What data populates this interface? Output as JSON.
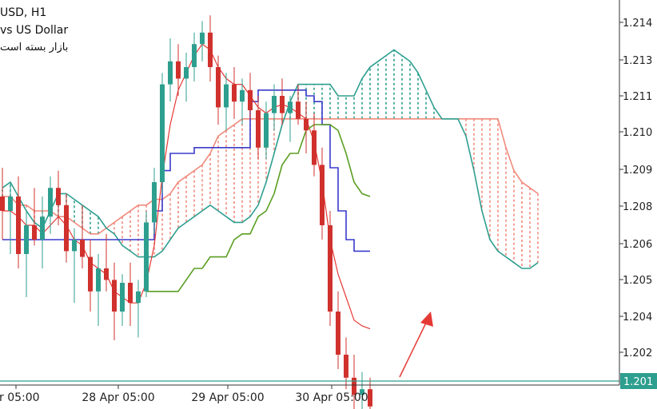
{
  "header": {
    "symbol": "USD, H1",
    "description": "vs US Dollar",
    "status": "بازار بسته است"
  },
  "chart_data": {
    "type": "candlestick",
    "timeframe": "H1",
    "price_ticks": [
      "1.214",
      "1.213",
      "1.211",
      "1.210",
      "1.209",
      "1.208",
      "1.206",
      "1.205",
      "1.204",
      "1.202"
    ],
    "time_ticks": [
      "or 05:00",
      "28 Apr 05:00",
      "29 Apr 05:00",
      "30 Apr 05:00"
    ],
    "current_price_label": "1.201",
    "colors": {
      "bull": "#2e9f8f",
      "bear": "#d0312d",
      "tenkan": "#e53935",
      "kijun": "#3a3acb",
      "chikou": "#5a9e22",
      "span_a": "#f08a7c",
      "span_b": "#2e9f8f",
      "current_price": "#2e9f8f",
      "arrow": "#e53935"
    },
    "candles": [
      [
        1.2085,
        1.2095,
        1.207,
        1.208
      ],
      [
        1.208,
        1.209,
        1.2065,
        1.2085
      ],
      [
        1.2085,
        1.2092,
        1.206,
        1.2065
      ],
      [
        1.2065,
        1.208,
        1.205,
        1.2075
      ],
      [
        1.2075,
        1.2088,
        1.2068,
        1.207
      ],
      [
        1.207,
        1.2085,
        1.206,
        1.2078
      ],
      [
        1.2078,
        1.2092,
        1.2072,
        1.2088
      ],
      [
        1.2088,
        1.2094,
        1.2075,
        1.2082
      ],
      [
        1.2082,
        1.2086,
        1.2062,
        1.2066
      ],
      [
        1.2066,
        1.2074,
        1.2048,
        1.207
      ],
      [
        1.207,
        1.2082,
        1.206,
        1.2064
      ],
      [
        1.2064,
        1.207,
        1.2045,
        1.2052
      ],
      [
        1.2052,
        1.2065,
        1.204,
        1.206
      ],
      [
        1.206,
        1.2072,
        1.2052,
        1.2056
      ],
      [
        1.2056,
        1.2062,
        1.2035,
        1.2045
      ],
      [
        1.2045,
        1.2058,
        1.204,
        1.2055
      ],
      [
        1.2055,
        1.2062,
        1.204,
        1.2048
      ],
      [
        1.2048,
        1.2056,
        1.2036,
        1.2052
      ],
      [
        1.2052,
        1.208,
        1.205,
        1.2076
      ],
      [
        1.2076,
        1.2095,
        1.2072,
        1.209
      ],
      [
        1.209,
        1.2128,
        1.2086,
        1.2124
      ],
      [
        1.2124,
        1.214,
        1.2118,
        1.2132
      ],
      [
        1.2132,
        1.2138,
        1.212,
        1.2126
      ],
      [
        1.2126,
        1.2135,
        1.2118,
        1.213
      ],
      [
        1.213,
        1.2142,
        1.2125,
        1.2138
      ],
      [
        1.2138,
        1.2146,
        1.2132,
        1.2142
      ],
      [
        1.2142,
        1.2148,
        1.2125,
        1.213
      ],
      [
        1.213,
        1.2134,
        1.211,
        1.2116
      ],
      [
        1.2116,
        1.2128,
        1.2108,
        1.2124
      ],
      [
        1.2124,
        1.213,
        1.2112,
        1.2118
      ],
      [
        1.2118,
        1.2126,
        1.211,
        1.2122
      ],
      [
        1.2122,
        1.2128,
        1.2112,
        1.2115
      ],
      [
        1.2115,
        1.212,
        1.2098,
        1.2102
      ],
      [
        1.2102,
        1.2118,
        1.2098,
        1.2114
      ],
      [
        1.2114,
        1.2124,
        1.2108,
        1.212
      ],
      [
        1.212,
        1.2126,
        1.211,
        1.2114
      ],
      [
        1.2114,
        1.212,
        1.2104,
        1.2118
      ],
      [
        1.2118,
        1.2124,
        1.211,
        1.2112
      ],
      [
        1.2112,
        1.2118,
        1.21,
        1.2108
      ],
      [
        1.2108,
        1.2114,
        1.2092,
        1.2096
      ],
      [
        1.2096,
        1.2102,
        1.207,
        1.2075
      ],
      [
        1.2075,
        1.208,
        1.204,
        1.2045
      ],
      [
        1.2045,
        1.2052,
        1.2025,
        1.203
      ],
      [
        1.203,
        1.2036,
        1.2018,
        1.2022
      ],
      [
        1.2022,
        1.203,
        1.201,
        1.2016
      ],
      [
        1.2016,
        1.2024,
        1.2008,
        1.2018
      ],
      [
        1.2018,
        1.2022,
        1.2006,
        1.2012
      ]
    ],
    "tenkan_sen": [
      1.208,
      1.208,
      1.2078,
      1.2075,
      1.2075,
      1.2072,
      1.2075,
      1.2078,
      1.2075,
      1.207,
      1.2068,
      1.2062,
      1.206,
      1.2058,
      1.2052,
      1.205,
      1.2048,
      1.2048,
      1.2055,
      1.2068,
      1.2092,
      1.211,
      1.2122,
      1.2128,
      1.2134,
      1.2138,
      1.2136,
      1.213,
      1.2126,
      1.2124,
      1.2124,
      1.212,
      1.2116,
      1.2114,
      1.2116,
      1.2117,
      1.2116,
      1.2114,
      1.2112,
      1.2104,
      1.209,
      1.207,
      1.2058,
      1.205,
      1.2042,
      1.204,
      1.2039
    ],
    "kijun_sen": [
      1.207,
      1.207,
      1.207,
      1.207,
      1.207,
      1.207,
      1.207,
      1.207,
      1.207,
      1.207,
      1.207,
      1.207,
      1.207,
      1.207,
      1.207,
      1.207,
      1.207,
      1.207,
      1.207,
      1.208,
      1.2094,
      1.21,
      1.21,
      1.21,
      1.2102,
      1.2102,
      1.2102,
      1.2102,
      1.2102,
      1.2102,
      1.2102,
      1.2118,
      1.2122,
      1.2122,
      1.2122,
      1.2122,
      1.2122,
      1.2122,
      1.212,
      1.2118,
      1.211,
      1.2095,
      1.208,
      1.207,
      1.2066,
      1.2066,
      1.2066
    ],
    "chikou_span": [
      1.2052,
      1.2052,
      1.2052,
      1.2052,
      1.2052,
      1.2056,
      1.206,
      1.206,
      1.2064,
      1.2064,
      1.2064,
      1.207,
      1.2072,
      1.2072,
      1.2078,
      1.208,
      1.2086,
      1.2096,
      1.21,
      1.21,
      1.2108,
      1.211,
      1.211,
      1.211,
      1.2108,
      1.21,
      1.209,
      1.2086,
      1.2085
    ],
    "span_a": [
      1.2085,
      1.2085,
      1.2082,
      1.2082,
      1.208,
      1.208,
      1.208,
      1.2078,
      1.2078,
      1.2076,
      1.2074,
      1.2072,
      1.2072,
      1.2074,
      1.2076,
      1.2078,
      1.208,
      1.2082,
      1.2082,
      1.2084,
      1.2084,
      1.2086,
      1.209,
      1.2092,
      1.2094,
      1.2096,
      1.21,
      1.2106,
      1.2108,
      1.211,
      1.2112,
      1.2112,
      1.2112,
      1.2112,
      1.2112,
      1.2112,
      1.2112,
      1.2112,
      1.2112,
      1.2112,
      1.2112,
      1.2112,
      1.2112,
      1.2112,
      1.2112,
      1.2112,
      1.2112,
      1.2112,
      1.2112,
      1.2112,
      1.2112,
      1.2112,
      1.2112,
      1.2112,
      1.2112,
      1.2112,
      1.2112,
      1.2112,
      1.2112,
      1.2112,
      1.2112,
      1.2112,
      1.2112,
      1.2102,
      1.2094,
      1.209,
      1.2088,
      1.2086
    ],
    "span_b": [
      1.2088,
      1.209,
      1.2085,
      1.208,
      1.2076,
      1.2074,
      1.208,
      1.2086,
      1.2086,
      1.2084,
      1.2082,
      1.208,
      1.2078,
      1.2074,
      1.2072,
      1.2068,
      1.2066,
      1.2064,
      1.2064,
      1.2064,
      1.2066,
      1.207,
      1.2074,
      1.2076,
      1.2078,
      1.208,
      1.2082,
      1.208,
      1.2078,
      1.2076,
      1.2076,
      1.2078,
      1.2082,
      1.209,
      1.21,
      1.211,
      1.2118,
      1.2124,
      1.2124,
      1.2124,
      1.2124,
      1.2124,
      1.212,
      1.212,
      1.212,
      1.2126,
      1.213,
      1.2132,
      1.2134,
      1.2136,
      1.2134,
      1.2132,
      1.2128,
      1.2122,
      1.2116,
      1.2112,
      1.2112,
      1.2112,
      1.2106,
      1.2094,
      1.208,
      1.207,
      1.2066,
      1.2064,
      1.2062,
      1.206,
      1.206,
      1.2062
    ]
  }
}
